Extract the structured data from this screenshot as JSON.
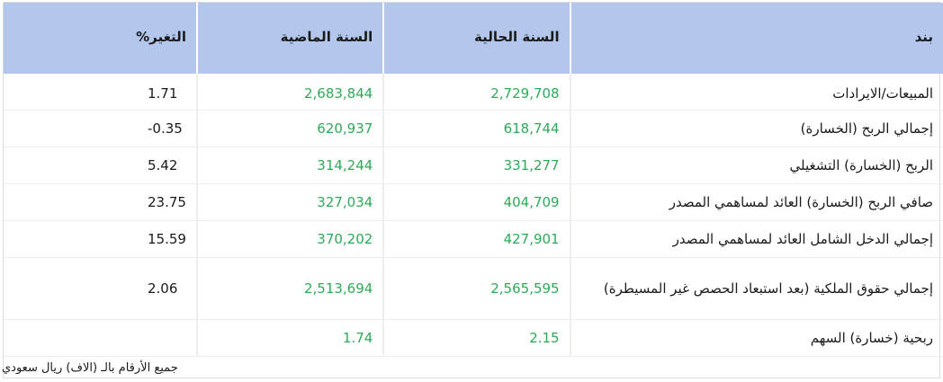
{
  "header": {
    "item": "بند",
    "current_year": "السنة الحالية",
    "last_year": "السنة الماضية",
    "change": "التغير%"
  },
  "rows": [
    {
      "item": "المبيعات/الايرادات",
      "current": "2,729,708",
      "last": "2,683,844",
      "change": "1.71"
    },
    {
      "item": "إجمالي الربح (الخسارة)",
      "current": "618,744",
      "last": "620,937",
      "change": "-0.35"
    },
    {
      "item": "الربح (الخسارة) التشغيلي",
      "current": "331,277",
      "last": "314,244",
      "change": "5.42"
    },
    {
      "item": "صافي الربح (الخسارة) العائد لمساهمي المصدر",
      "current": "404,709",
      "last": "327,034",
      "change": "23.75"
    },
    {
      "item": "إجمالي الدخل الشامل العائد لمساهمي المصدر",
      "current": "427,901",
      "last": "370,202",
      "change": "15.59"
    },
    {
      "item": "إجمالي حقوق الملكية (بعد استبعاد الحصص غير المسيطرة)",
      "current": "2,565,595",
      "last": "2,513,694",
      "change": "2.06"
    },
    {
      "item": "ربحية (خسارة) السهم",
      "current": "2.15",
      "last": "1.74",
      "change": ""
    }
  ],
  "footnote": "جميع الأرقام بالـ (الاف) ريال سعودي",
  "colors": {
    "header_bg": "#b3c6ec",
    "positive_number": "#2cab57"
  }
}
